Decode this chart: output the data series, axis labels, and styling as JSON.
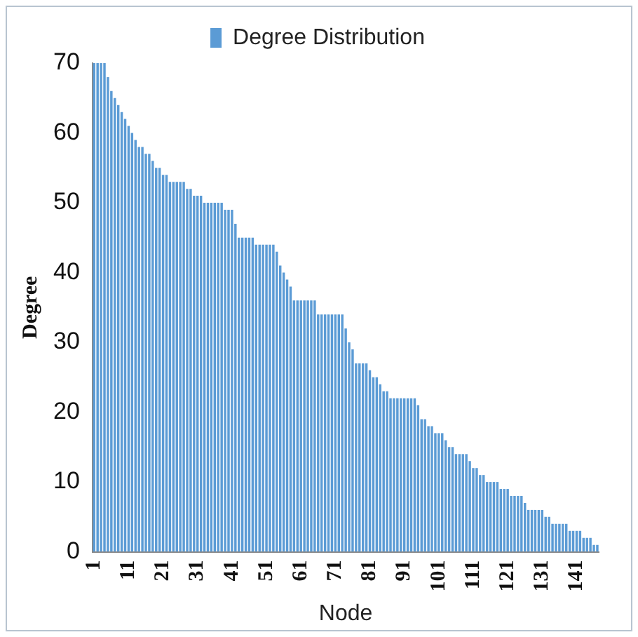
{
  "chart_data": {
    "type": "bar",
    "xlabel": "Node",
    "ylabel": "Degree",
    "categories": [
      "1",
      null,
      null,
      null,
      null,
      null,
      null,
      null,
      null,
      null,
      "11",
      null,
      null,
      null,
      null,
      null,
      null,
      null,
      null,
      null,
      "21",
      null,
      null,
      null,
      null,
      null,
      null,
      null,
      null,
      null,
      "31",
      null,
      null,
      null,
      null,
      null,
      null,
      null,
      null,
      null,
      "41",
      null,
      null,
      null,
      null,
      null,
      null,
      null,
      null,
      null,
      "51",
      null,
      null,
      null,
      null,
      null,
      null,
      null,
      null,
      null,
      "61",
      null,
      null,
      null,
      null,
      null,
      null,
      null,
      null,
      null,
      "71",
      null,
      null,
      null,
      null,
      null,
      null,
      null,
      null,
      null,
      "81",
      null,
      null,
      null,
      null,
      null,
      null,
      null,
      null,
      null,
      "91",
      null,
      null,
      null,
      null,
      null,
      null,
      null,
      null,
      null,
      "101",
      null,
      null,
      null,
      null,
      null,
      null,
      null,
      null,
      null,
      "111",
      null,
      null,
      null,
      null,
      null,
      null,
      null,
      null,
      null,
      "121",
      null,
      null,
      null,
      null,
      null,
      null,
      null,
      null,
      null,
      "131",
      null,
      null,
      null,
      null,
      null,
      null,
      null,
      null,
      null,
      "141",
      null,
      null,
      null,
      null,
      null,
      null
    ],
    "series": [
      {
        "name": "Degree Distribution",
        "color": "#5b9bd5",
        "values": [
          70,
          70,
          70,
          70,
          68,
          66,
          65,
          64,
          63,
          62,
          61,
          60,
          59,
          58,
          58,
          57,
          57,
          56,
          55,
          55,
          54,
          54,
          53,
          53,
          53,
          53,
          53,
          52,
          52,
          51,
          51,
          51,
          50,
          50,
          50,
          50,
          50,
          50,
          49,
          49,
          49,
          47,
          45,
          45,
          45,
          45,
          45,
          44,
          44,
          44,
          44,
          44,
          44,
          43,
          41,
          40,
          39,
          38,
          36,
          36,
          36,
          36,
          36,
          36,
          36,
          34,
          34,
          34,
          34,
          34,
          34,
          34,
          34,
          32,
          30,
          29,
          27,
          27,
          27,
          27,
          26,
          25,
          25,
          24,
          23,
          23,
          22,
          22,
          22,
          22,
          22,
          22,
          22,
          22,
          21,
          19,
          19,
          18,
          18,
          17,
          17,
          17,
          16,
          15,
          15,
          14,
          14,
          14,
          14,
          13,
          12,
          12,
          11,
          11,
          10,
          10,
          10,
          10,
          9,
          9,
          9,
          8,
          8,
          8,
          8,
          7,
          6,
          6,
          6,
          6,
          6,
          5,
          5,
          4,
          4,
          4,
          4,
          4,
          3,
          3,
          3,
          3,
          2,
          2,
          2,
          1,
          1
        ]
      }
    ],
    "ylim": [
      0,
      70
    ],
    "yticks": [
      0,
      10,
      20,
      30,
      40,
      50,
      60,
      70
    ],
    "grid": false,
    "legend": "top"
  }
}
